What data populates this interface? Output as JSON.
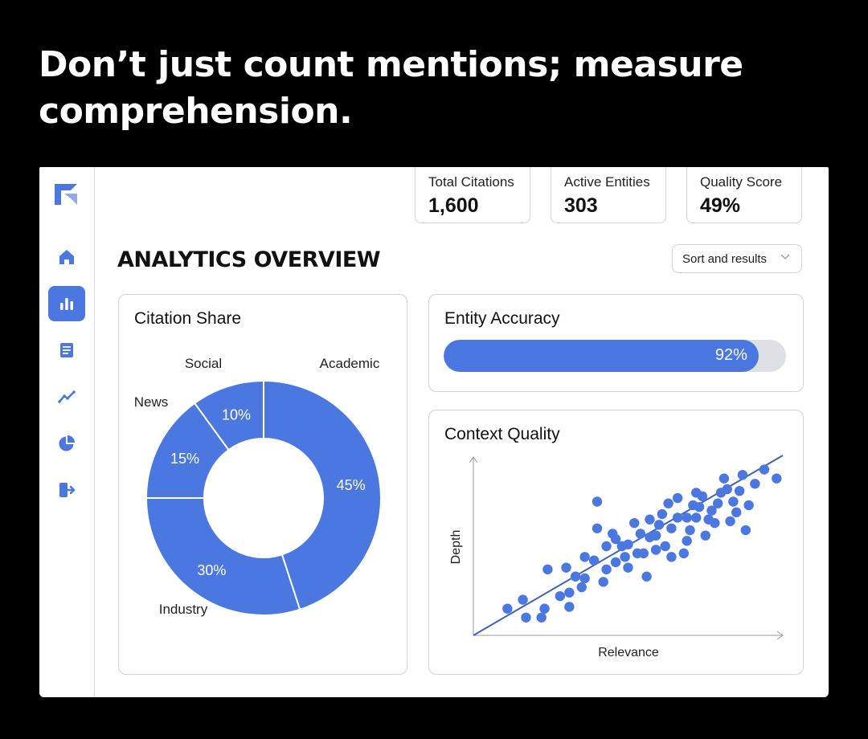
{
  "headline": "Don’t just count mentions; measure comprehension.",
  "nav": {
    "items": [
      {
        "icon": "home-icon",
        "active": false
      },
      {
        "icon": "bar-chart-icon",
        "active": true
      },
      {
        "icon": "document-icon",
        "active": false
      },
      {
        "icon": "trend-line-icon",
        "active": false
      },
      {
        "icon": "pie-chart-icon",
        "active": false
      },
      {
        "icon": "logout-icon",
        "active": false
      }
    ]
  },
  "kpis": [
    {
      "label": "Total Citations",
      "value": "1,600"
    },
    {
      "label": "Active Entities",
      "value": "303"
    },
    {
      "label": "Quality Score",
      "value": "49%"
    }
  ],
  "page_title": "ANALYTICS OVERVIEW",
  "sort_label": "Sort and results",
  "colors": {
    "accent": "#4a78e0",
    "track": "#dde1e6",
    "border": "#cfd3d9"
  },
  "citation_share": {
    "title": "Citation Share"
  },
  "entity_accuracy": {
    "title": "Entity Accuracy",
    "value": 0.92,
    "label": "92%"
  },
  "context_quality": {
    "title": "Context Quality"
  },
  "chart_data": [
    {
      "type": "pie",
      "title": "Citation Share",
      "categories": [
        "Academic",
        "Industry",
        "News",
        "Social"
      ],
      "values": [
        45,
        30,
        15,
        10
      ],
      "value_labels": [
        "45%",
        "30%",
        "15%",
        "10%"
      ],
      "donut": true
    },
    {
      "type": "scatter",
      "title": "Context Quality",
      "xlabel": "Relevance",
      "ylabel": "Depth",
      "xlim": [
        0,
        100
      ],
      "ylim": [
        0,
        100
      ],
      "trendline": {
        "start": [
          0,
          0
        ],
        "end": [
          100,
          100
        ]
      },
      "points": [
        [
          11,
          15
        ],
        [
          17,
          10
        ],
        [
          16,
          20
        ],
        [
          22,
          10
        ],
        [
          23,
          15
        ],
        [
          28,
          22
        ],
        [
          31,
          16
        ],
        [
          31,
          24
        ],
        [
          24,
          37
        ],
        [
          30,
          38
        ],
        [
          35,
          27
        ],
        [
          36,
          32
        ],
        [
          39,
          42
        ],
        [
          42,
          30
        ],
        [
          43,
          37
        ],
        [
          43,
          50
        ],
        [
          40,
          60
        ],
        [
          40,
          75
        ],
        [
          46,
          41
        ],
        [
          46,
          54
        ],
        [
          50,
          38
        ],
        [
          49,
          44
        ],
        [
          53,
          46
        ],
        [
          56,
          33
        ],
        [
          55,
          46
        ],
        [
          57,
          55
        ],
        [
          59,
          48
        ],
        [
          60,
          62
        ],
        [
          62,
          50
        ],
        [
          64,
          60
        ],
        [
          63,
          74
        ],
        [
          66,
          66
        ],
        [
          68,
          46
        ],
        [
          69,
          53
        ],
        [
          70,
          59
        ],
        [
          71,
          73
        ],
        [
          72,
          80
        ],
        [
          73,
          72
        ],
        [
          75,
          56
        ],
        [
          76,
          65
        ],
        [
          78,
          63
        ],
        [
          79,
          74
        ],
        [
          81,
          88
        ],
        [
          82,
          82
        ],
        [
          83,
          64
        ],
        [
          84,
          75
        ],
        [
          86,
          81
        ],
        [
          88,
          59
        ],
        [
          89,
          73
        ],
        [
          87,
          90
        ],
        [
          91,
          85
        ],
        [
          94,
          93
        ],
        [
          98,
          88
        ],
        [
          50,
          51
        ],
        [
          59,
          56
        ],
        [
          57,
          65
        ],
        [
          52,
          63
        ],
        [
          64,
          44
        ],
        [
          77,
          70
        ],
        [
          72,
          66
        ],
        [
          36,
          44
        ],
        [
          33,
          33
        ],
        [
          61,
          68
        ],
        [
          66,
          77
        ],
        [
          54,
          57
        ],
        [
          48,
          50
        ],
        [
          69,
          66
        ],
        [
          74,
          78
        ],
        [
          80,
          80
        ],
        [
          85,
          69
        ],
        [
          45,
          57
        ]
      ]
    }
  ]
}
